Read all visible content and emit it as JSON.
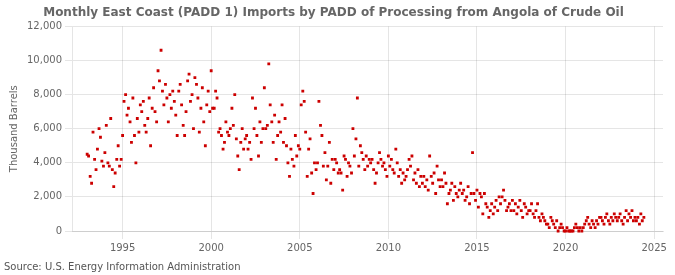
{
  "chart_data": {
    "type": "scatter",
    "title": "Monthly East Coast (PADD 1) Imports by PADD of Processing from Angola of Crude Oil",
    "ylabel": "Thousand Barrels",
    "annotations": [
      "Source: U.S. Energy Information Administration"
    ],
    "color": "#cc0000",
    "marker": "square",
    "grid": true,
    "xlim": [
      1992.2,
      2025.5
    ],
    "ylim": [
      0,
      12000
    ],
    "xticks": [
      1995,
      2000,
      2005,
      2010,
      2015,
      2020,
      2025
    ],
    "yticks": [
      0,
      {
        "value": 2000,
        "label": "2,000"
      },
      {
        "value": 4000,
        "label": "4,000"
      },
      {
        "value": 6000,
        "label": "6,000"
      },
      {
        "value": 8000,
        "label": "8,000"
      },
      {
        "value": 10000,
        "label": "10,000"
      },
      {
        "value": 12000,
        "label": "12,000"
      }
    ],
    "x": [
      1993.0,
      1993.08,
      1993.17,
      1993.25,
      1993.33,
      1993.42,
      1993.5,
      1993.58,
      1993.67,
      1993.75,
      1993.83,
      1993.92,
      1994.0,
      1994.08,
      1994.17,
      1994.25,
      1994.33,
      1994.42,
      1994.5,
      1994.58,
      1994.67,
      1994.75,
      1994.83,
      1994.92,
      1995.0,
      1995.08,
      1995.17,
      1995.25,
      1995.33,
      1995.42,
      1995.5,
      1995.58,
      1995.67,
      1995.75,
      1995.83,
      1995.92,
      1996.0,
      1996.08,
      1996.17,
      1996.25,
      1996.33,
      1996.42,
      1996.5,
      1996.58,
      1996.67,
      1996.75,
      1996.83,
      1996.92,
      1997.0,
      1997.08,
      1997.17,
      1997.25,
      1997.33,
      1997.42,
      1997.5,
      1997.58,
      1997.67,
      1997.75,
      1997.83,
      1997.92,
      1998.0,
      1998.08,
      1998.17,
      1998.25,
      1998.33,
      1998.42,
      1998.5,
      1998.58,
      1998.67,
      1998.75,
      1998.83,
      1998.92,
      1999.0,
      1999.08,
      1999.17,
      1999.25,
      1999.33,
      1999.42,
      1999.5,
      1999.58,
      1999.67,
      1999.75,
      1999.83,
      1999.92,
      2000.0,
      2000.08,
      2000.17,
      2000.25,
      2000.33,
      2000.42,
      2000.5,
      2000.58,
      2000.67,
      2000.75,
      2000.83,
      2000.92,
      2001.0,
      2001.08,
      2001.17,
      2001.25,
      2001.33,
      2001.42,
      2001.5,
      2001.58,
      2001.67,
      2001.75,
      2001.83,
      2001.92,
      2002.0,
      2002.08,
      2002.17,
      2002.25,
      2002.33,
      2002.42,
      2002.5,
      2002.58,
      2002.67,
      2002.75,
      2002.83,
      2002.92,
      2003.0,
      2003.08,
      2003.17,
      2003.25,
      2003.33,
      2003.42,
      2003.5,
      2003.58,
      2003.67,
      2003.75,
      2003.83,
      2003.92,
      2004.0,
      2004.08,
      2004.17,
      2004.25,
      2004.33,
      2004.42,
      2004.5,
      2004.58,
      2004.67,
      2004.75,
      2004.83,
      2004.92,
      2005.0,
      2005.08,
      2005.17,
      2005.25,
      2005.33,
      2005.42,
      2005.5,
      2005.58,
      2005.67,
      2005.75,
      2005.83,
      2005.92,
      2006.0,
      2006.08,
      2006.17,
      2006.25,
      2006.33,
      2006.42,
      2006.5,
      2006.58,
      2006.67,
      2006.75,
      2006.83,
      2006.92,
      2007.0,
      2007.08,
      2007.17,
      2007.25,
      2007.33,
      2007.42,
      2007.5,
      2007.58,
      2007.67,
      2007.75,
      2007.83,
      2007.92,
      2008.0,
      2008.08,
      2008.17,
      2008.25,
      2008.33,
      2008.42,
      2008.5,
      2008.58,
      2008.67,
      2008.75,
      2008.83,
      2008.92,
      2009.0,
      2009.08,
      2009.17,
      2009.25,
      2009.33,
      2009.42,
      2009.5,
      2009.58,
      2009.67,
      2009.75,
      2009.83,
      2009.92,
      2010.0,
      2010.08,
      2010.17,
      2010.25,
      2010.33,
      2010.42,
      2010.5,
      2010.58,
      2010.67,
      2010.75,
      2010.83,
      2010.92,
      2011.0,
      2011.08,
      2011.17,
      2011.25,
      2011.33,
      2011.42,
      2011.5,
      2011.58,
      2011.67,
      2011.75,
      2011.83,
      2011.92,
      2012.0,
      2012.08,
      2012.17,
      2012.25,
      2012.33,
      2012.42,
      2012.5,
      2012.58,
      2012.67,
      2012.75,
      2012.83,
      2012.92,
      2013.0,
      2013.08,
      2013.17,
      2013.25,
      2013.33,
      2013.42,
      2013.5,
      2013.58,
      2013.67,
      2013.75,
      2013.83,
      2013.92,
      2014.0,
      2014.08,
      2014.17,
      2014.25,
      2014.33,
      2014.42,
      2014.5,
      2014.58,
      2014.67,
      2014.75,
      2014.83,
      2014.92,
      2015.0,
      2015.08,
      2015.17,
      2015.25,
      2015.33,
      2015.42,
      2015.5,
      2015.58,
      2015.67,
      2015.75,
      2015.83,
      2015.92,
      2016.0,
      2016.08,
      2016.17,
      2016.25,
      2016.33,
      2016.42,
      2016.5,
      2016.58,
      2016.67,
      2016.75,
      2016.83,
      2016.92,
      2017.0,
      2017.08,
      2017.17,
      2017.25,
      2017.33,
      2017.42,
      2017.5,
      2017.58,
      2017.67,
      2017.75,
      2017.83,
      2017.92,
      2018.0,
      2018.08,
      2018.17,
      2018.25,
      2018.33,
      2018.42,
      2018.5,
      2018.58,
      2018.67,
      2018.75,
      2018.83,
      2018.92,
      2019.0,
      2019.08,
      2019.17,
      2019.25,
      2019.33,
      2019.42,
      2019.5,
      2019.58,
      2019.67,
      2019.75,
      2019.83,
      2019.92,
      2020.0,
      2020.08,
      2020.17,
      2020.25,
      2020.33,
      2020.42,
      2020.5,
      2020.58,
      2020.67,
      2020.75,
      2020.83,
      2020.92,
      2021.0,
      2021.08,
      2021.17,
      2021.25,
      2021.33,
      2021.42,
      2021.5,
      2021.58,
      2021.67,
      2021.75,
      2021.83,
      2021.92,
      2022.0,
      2022.08,
      2022.17,
      2022.25,
      2022.33,
      2022.42,
      2022.5,
      2022.58,
      2022.67,
      2022.75,
      2022.83,
      2022.92,
      2023.0,
      2023.08,
      2023.17,
      2023.25,
      2023.33,
      2023.42,
      2023.5,
      2023.58,
      2023.67,
      2023.75,
      2023.83,
      2023.92,
      2024.0,
      2024.08,
      2024.17,
      2024.25,
      2024.33,
      2024.42
    ],
    "values": [
      4500,
      4400,
      3200,
      2800,
      5800,
      4200,
      3600,
      4800,
      6000,
      5500,
      4100,
      3800,
      4600,
      6200,
      4000,
      3800,
      6600,
      3600,
      2600,
      3400,
      4200,
      5000,
      3800,
      4200,
      5600,
      7600,
      8000,
      6800,
      7200,
      6400,
      5200,
      7800,
      5600,
      4000,
      6600,
      5800,
      7400,
      7000,
      7600,
      6200,
      5800,
      6600,
      7800,
      5000,
      7200,
      8400,
      7000,
      6400,
      9400,
      8800,
      10600,
      8200,
      7400,
      8600,
      7800,
      6400,
      8000,
      7200,
      8200,
      7600,
      6800,
      5600,
      8200,
      8600,
      7400,
      6200,
      5600,
      7000,
      8800,
      9200,
      7600,
      8000,
      6000,
      9000,
      8600,
      7800,
      5800,
      7200,
      8400,
      6400,
      5000,
      7400,
      8200,
      7000,
      9400,
      7200,
      7200,
      8200,
      7800,
      5800,
      6000,
      5600,
      4800,
      5200,
      6400,
      5800,
      5600,
      6000,
      7200,
      6200,
      8000,
      5400,
      4400,
      3600,
      5200,
      6000,
      4800,
      5400,
      5600,
      4800,
      5200,
      4200,
      7800,
      6000,
      7200,
      5600,
      4400,
      6400,
      5200,
      6000,
      8400,
      6000,
      6200,
      9800,
      7400,
      6400,
      5200,
      6800,
      4200,
      5600,
      6400,
      5800,
      7400,
      5200,
      6600,
      5000,
      4000,
      3200,
      4800,
      4200,
      3800,
      5600,
      4400,
      5000,
      4800,
      7400,
      8200,
      7600,
      5800,
      3200,
      4800,
      5400,
      3400,
      2200,
      4000,
      3600,
      4000,
      7600,
      6200,
      5600,
      3800,
      4600,
      3000,
      3800,
      5200,
      2800,
      4200,
      3600,
      4200,
      4000,
      3400,
      3600,
      3400,
      2400,
      4400,
      4200,
      3200,
      4000,
      3800,
      3400,
      6000,
      4400,
      5400,
      7800,
      3800,
      5000,
      4600,
      4200,
      3600,
      4400,
      3800,
      4200,
      4000,
      4200,
      3600,
      2800,
      3400,
      4000,
      4600,
      4200,
      3800,
      4000,
      3600,
      3200,
      4400,
      3800,
      4200,
      3600,
      3400,
      4800,
      4000,
      3200,
      3600,
      2800,
      3400,
      3000,
      3200,
      3600,
      4200,
      3800,
      4400,
      3000,
      3400,
      2800,
      3600,
      2600,
      3200,
      2800,
      3200,
      2600,
      3000,
      2400,
      4400,
      3200,
      2800,
      3400,
      2200,
      3800,
      3000,
      2600,
      3000,
      2600,
      3400,
      2800,
      1600,
      2200,
      2400,
      2800,
      1800,
      2600,
      2200,
      2000,
      2400,
      2800,
      2200,
      2400,
      1800,
      2000,
      2600,
      1600,
      2200,
      4600,
      2200,
      1800,
      2400,
      1400,
      2200,
      2000,
      1000,
      2200,
      1600,
      1400,
      800,
      1200,
      1600,
      1000,
      1400,
      1800,
      1200,
      2000,
      1600,
      2000,
      2400,
      1800,
      1200,
      1400,
      1600,
      1200,
      1800,
      1200,
      1600,
      1000,
      1400,
      1800,
      1200,
      800,
      1600,
      1400,
      1000,
      1200,
      1200,
      1600,
      1000,
      800,
      1200,
      1600,
      800,
      600,
      1000,
      800,
      600,
      400,
      400,
      200,
      800,
      600,
      400,
      200,
      600,
      0,
      200,
      400,
      200,
      0,
      0,
      200,
      0,
      0,
      0,
      0,
      200,
      400,
      200,
      0,
      200,
      0,
      200,
      400,
      600,
      800,
      400,
      200,
      600,
      400,
      200,
      600,
      400,
      800,
      800,
      600,
      400,
      800,
      1000,
      600,
      400,
      800,
      600,
      1000,
      800,
      600,
      800,
      1000,
      600,
      400,
      800,
      1200,
      600,
      1000,
      800,
      1200,
      600,
      800,
      600,
      800,
      400,
      1000,
      600,
      800
    ]
  }
}
